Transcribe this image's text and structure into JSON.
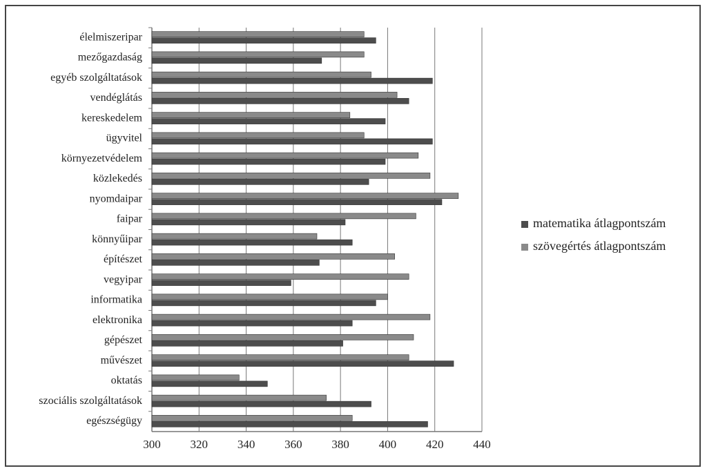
{
  "chart_data": {
    "type": "hbar",
    "categories": [
      "élelmiszeripar",
      "mezőgazdaság",
      "egyéb szolgáltatások",
      "vendéglátás",
      "kereskedelem",
      "ügyvitel",
      "környezetvédelem",
      "közlekedés",
      "nyomdaipar",
      "faipar",
      "könnyűipar",
      "építészet",
      "vegyipar",
      "informatika",
      "elektronika",
      "gépészet",
      "művészet",
      "oktatás",
      "szociális szolgáltatások",
      "egészségügy"
    ],
    "series": [
      {
        "name": "matematika átlagpontszám",
        "color": "#4d4d4d",
        "values": [
          395,
          372,
          419,
          409,
          399,
          419,
          399,
          392,
          423,
          382,
          385,
          371,
          359,
          395,
          385,
          381,
          428,
          349,
          393,
          417
        ]
      },
      {
        "name": "szövegértés átlagpontszám",
        "color": "#8a8a8a",
        "values": [
          390,
          390,
          393,
          404,
          384,
          390,
          413,
          418,
          430,
          412,
          370,
          403,
          409,
          400,
          418,
          411,
          409,
          337,
          374,
          385
        ]
      }
    ],
    "xlim": [
      300,
      440
    ],
    "xticks": [
      300,
      320,
      340,
      360,
      380,
      400,
      420,
      440
    ],
    "grid": true,
    "legend": "right"
  }
}
